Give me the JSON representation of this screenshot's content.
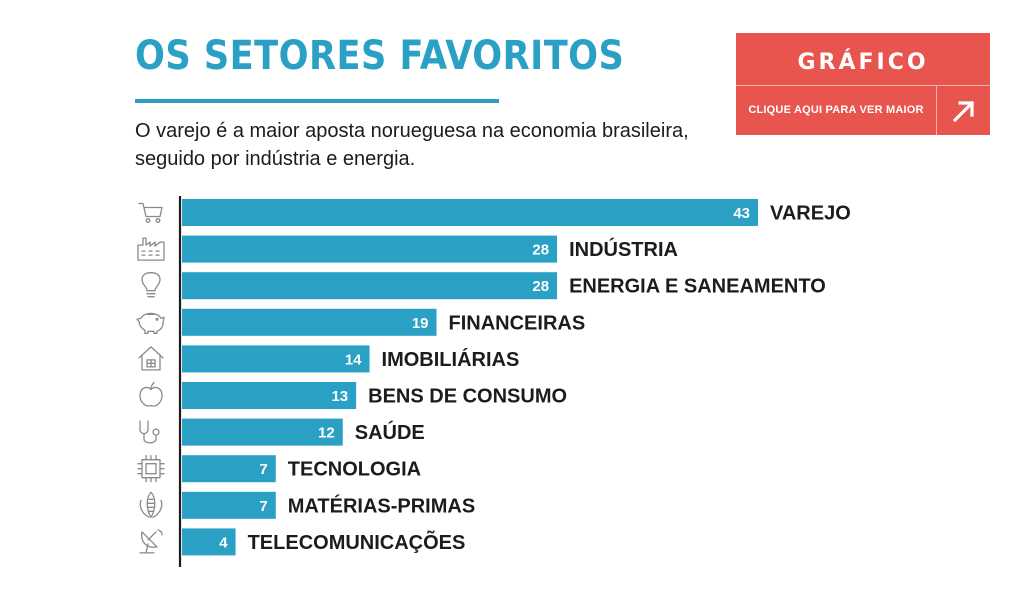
{
  "title": "OS SETORES FAVORITOS",
  "subtitle": "O varejo é a maior aposta norueguesa na economia brasileira, seguido por indústria e energia.",
  "grafico_button": {
    "title": "GRÁFICO",
    "link_label": "CLIQUE AQUI PARA VER MAIOR",
    "arrow_icon": "arrow-up-right-icon",
    "color": "#e8554f"
  },
  "chart_data": {
    "type": "bar",
    "orientation": "horizontal",
    "bar_color": "#2aa1c4",
    "categories": [
      "VAREJO",
      "INDÚSTRIA",
      "ENERGIA E SANEAMENTO",
      "FINANCEIRAS",
      "IMOBILIÁRIAS",
      "BENS DE CONSUMO",
      "SAÚDE",
      "TECNOLOGIA",
      "MATÉRIAS-PRIMAS",
      "TELECOMUNICAÇÕES"
    ],
    "values": [
      43,
      28,
      28,
      19,
      14,
      13,
      12,
      7,
      7,
      4
    ],
    "icons": [
      "shopping-cart-icon",
      "factory-icon",
      "lightbulb-icon",
      "piggy-bank-icon",
      "house-icon",
      "apple-icon",
      "stethoscope-icon",
      "chip-icon",
      "corn-icon",
      "satellite-dish-icon"
    ],
    "data_labels": true,
    "grid": false
  }
}
